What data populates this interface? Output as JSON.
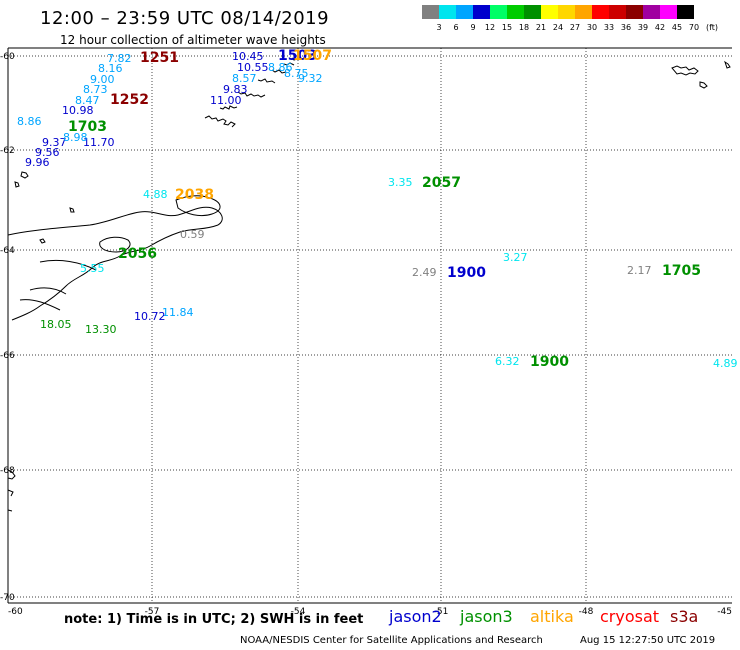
{
  "header": {
    "title": "12:00 – 23:59 UTC 08/14/2019",
    "subtitle": "12 hour collection of altimeter wave heights"
  },
  "legend": {
    "unit": "(ft)",
    "items": [
      {
        "label": "3",
        "color": "#808080"
      },
      {
        "label": "6",
        "color": "#00e5ee"
      },
      {
        "label": "9",
        "color": "#00a5ff"
      },
      {
        "label": "12",
        "color": "#0000cd"
      },
      {
        "label": "15",
        "color": "#00ff66"
      },
      {
        "label": "18",
        "color": "#00cc00"
      },
      {
        "label": "21",
        "color": "#009000"
      },
      {
        "label": "24",
        "color": "#ffff00"
      },
      {
        "label": "27",
        "color": "#ffd700"
      },
      {
        "label": "30",
        "color": "#ffa500"
      },
      {
        "label": "33",
        "color": "#ff0000"
      },
      {
        "label": "36",
        "color": "#cd0000"
      },
      {
        "label": "39",
        "color": "#8b0000"
      },
      {
        "label": "42",
        "color": "#a000a0"
      },
      {
        "label": "45",
        "color": "#ff00ff"
      },
      {
        "label": "70",
        "color": "#000000"
      }
    ]
  },
  "axes": {
    "lon_labels": [
      "-60",
      "-57",
      "-54",
      "-51",
      "-48",
      "-45"
    ],
    "lat_labels": [
      "-60",
      "-62",
      "-64",
      "-66",
      "-68",
      "-70"
    ],
    "lon_range": [
      -60,
      -45
    ],
    "lat_range": [
      -70,
      -60
    ]
  },
  "observations": [
    {
      "text": "7.82",
      "color": "#00a5ff"
    },
    {
      "text": "1251",
      "color": "#8b0000"
    },
    {
      "text": "8.16",
      "color": "#00a5ff"
    },
    {
      "text": "9.00",
      "color": "#00a5ff"
    },
    {
      "text": "8.73",
      "color": "#00a5ff"
    },
    {
      "text": "8.47",
      "color": "#00a5ff"
    },
    {
      "text": "1252",
      "color": "#8b0000"
    },
    {
      "text": "10.98",
      "color": "#0000cd"
    },
    {
      "text": "8.86",
      "color": "#00a5ff"
    },
    {
      "text": "1703",
      "color": "#009000"
    },
    {
      "text": "9.37",
      "color": "#0000cd"
    },
    {
      "text": "11.70",
      "color": "#0000cd"
    },
    {
      "text": "8.98",
      "color": "#00a5ff"
    },
    {
      "text": "9.56",
      "color": "#0000cd"
    },
    {
      "text": "9.96",
      "color": "#0000cd"
    },
    {
      "text": "10.45",
      "color": "#0000cd"
    },
    {
      "text": "1503",
      "color": "#0000cd"
    },
    {
      "text": "1507",
      "color": "#ffa500"
    },
    {
      "text": "10.55",
      "color": "#0000cd"
    },
    {
      "text": "8.86",
      "color": "#00a5ff"
    },
    {
      "text": "8.75",
      "color": "#00a5ff"
    },
    {
      "text": "9.32",
      "color": "#00a5ff"
    },
    {
      "text": "8.57",
      "color": "#00a5ff"
    },
    {
      "text": "9.83",
      "color": "#0000cd"
    },
    {
      "text": "11.00",
      "color": "#0000cd"
    },
    {
      "text": "4.88",
      "color": "#00e5ee"
    },
    {
      "text": "2038",
      "color": "#ffa500"
    },
    {
      "text": "3.35",
      "color": "#00e5ee"
    },
    {
      "text": "2057",
      "color": "#009000"
    },
    {
      "text": "0.59",
      "color": "#808080"
    },
    {
      "text": "2056",
      "color": "#009000"
    },
    {
      "text": "5.55",
      "color": "#00e5ee"
    },
    {
      "text": "3.27",
      "color": "#00e5ee"
    },
    {
      "text": "2.49",
      "color": "#808080"
    },
    {
      "text": "1900",
      "color": "#0000cd"
    },
    {
      "text": "2.17",
      "color": "#808080"
    },
    {
      "text": "1705",
      "color": "#009000"
    },
    {
      "text": "11.84",
      "color": "#00a5ff"
    },
    {
      "text": "10.72",
      "color": "#0000cd"
    },
    {
      "text": "18.05",
      "color": "#009000"
    },
    {
      "text": "13.30",
      "color": "#009000"
    },
    {
      "text": "6.32",
      "color": "#00e5ee"
    },
    {
      "text": "1900",
      "color": "#009000"
    },
    {
      "text": "4.89",
      "color": "#00e5ee"
    }
  ],
  "footer": {
    "note": "note:  1) Time is in UTC;  2) SWH is in feet",
    "satellites": [
      {
        "name": "jason2",
        "color": "#0000cd"
      },
      {
        "name": "jason3",
        "color": "#009000"
      },
      {
        "name": "altika",
        "color": "#ffa500"
      },
      {
        "name": "cryosat",
        "color": "#ff0000"
      },
      {
        "name": "s3a",
        "color": "#8b0000"
      }
    ],
    "credit": "NOAA/NESDIS Center for Satellite Applications and Research",
    "timestamp": "Aug 15 12:27:50 UTC 2019"
  }
}
